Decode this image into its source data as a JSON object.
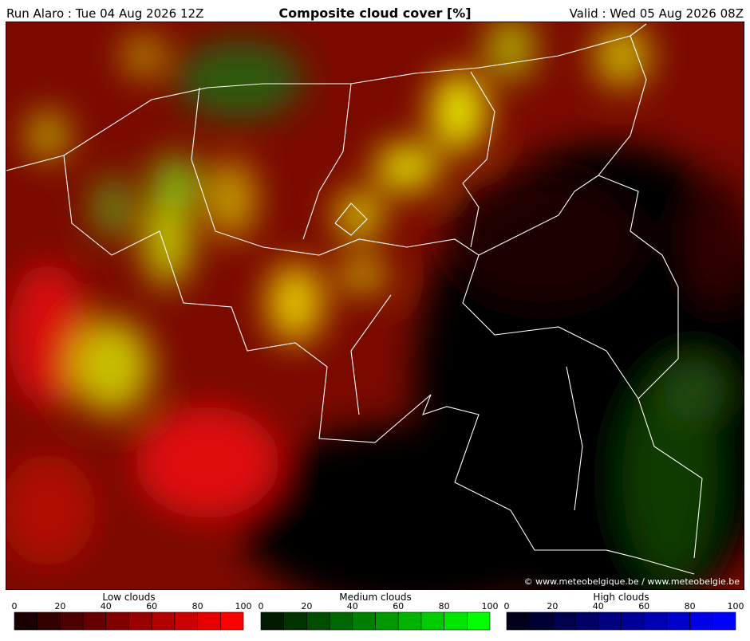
{
  "header": {
    "run": "Run Alaro : Tue 04 Aug 2026 12Z",
    "title": "Composite cloud cover [%]",
    "valid": "Valid : Wed 05 Aug 2026 08Z"
  },
  "copyright": "© www.meteobelgique.be / www.meteobelgie.be",
  "legends": [
    {
      "title": "Low clouds",
      "ticks": [
        0,
        20,
        40,
        60,
        80,
        100
      ],
      "colors": [
        "#1a0000",
        "#330000",
        "#4d0000",
        "#660000",
        "#800000",
        "#990000",
        "#b30000",
        "#cc0000",
        "#e60000",
        "#ff0000"
      ]
    },
    {
      "title": "Medium clouds",
      "ticks": [
        0,
        20,
        40,
        60,
        80,
        100
      ],
      "colors": [
        "#001a00",
        "#003300",
        "#004d00",
        "#006600",
        "#008000",
        "#009900",
        "#00b300",
        "#00cc00",
        "#00e600",
        "#00ff00"
      ]
    },
    {
      "title": "High clouds",
      "ticks": [
        0,
        20,
        40,
        60,
        80,
        100
      ],
      "colors": [
        "#00001a",
        "#000033",
        "#00004d",
        "#000066",
        "#000080",
        "#000099",
        "#0000b3",
        "#0000cc",
        "#0000e6",
        "#0000ff"
      ]
    }
  ]
}
